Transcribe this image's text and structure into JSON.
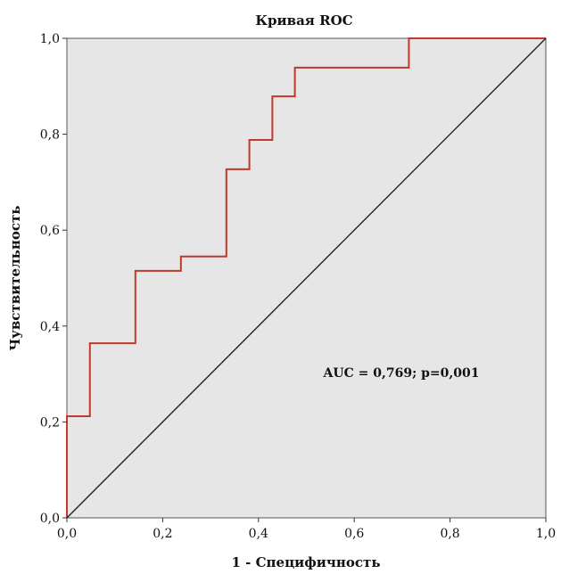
{
  "chart_data": {
    "type": "line",
    "title": "Кривая ROC",
    "xlabel": "1 - Специфичность",
    "ylabel": "Чувствительность",
    "xlim": [
      0,
      1
    ],
    "ylim": [
      0,
      1
    ],
    "xticks": [
      0,
      0.2,
      0.4,
      0.6,
      0.8,
      1.0
    ],
    "yticks": [
      0,
      0.2,
      0.4,
      0.6,
      0.8,
      1.0
    ],
    "xtick_labels": [
      "0,0",
      "0,2",
      "0,4",
      "0,6",
      "0,8",
      "1,0"
    ],
    "ytick_labels": [
      "0,0",
      "0,2",
      "0,4",
      "0,6",
      "0,8",
      "1,0"
    ],
    "grid": false,
    "plot_background": "#e6e6e6",
    "annotation": "AUC = 0,769; p=0,001",
    "series": [
      {
        "color": "#c0392b",
        "x": [
          0,
          0,
          0.048,
          0.048,
          0.143,
          0.143,
          0.238,
          0.238,
          0.333,
          0.333,
          0.381,
          0.381,
          0.429,
          0.429,
          0.476,
          0.476,
          0.714,
          0.714,
          1.0
        ],
        "y": [
          0,
          0.212,
          0.212,
          0.364,
          0.364,
          0.515,
          0.515,
          0.545,
          0.545,
          0.727,
          0.727,
          0.788,
          0.788,
          0.879,
          0.879,
          0.939,
          0.939,
          1.0,
          1.0
        ]
      },
      {
        "color": "#222222",
        "x": [
          0,
          1
        ],
        "y": [
          0,
          1
        ]
      }
    ]
  }
}
